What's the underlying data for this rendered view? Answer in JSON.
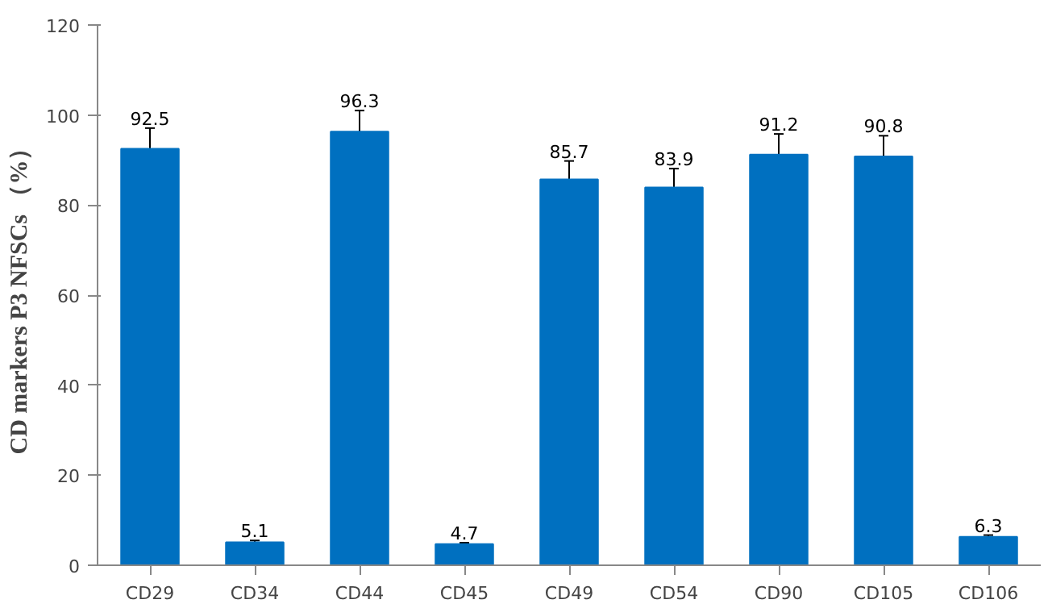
{
  "chart_data": {
    "type": "bar",
    "ylabel": "CD markers P3 NFSCs （%）",
    "categories": [
      "CD29",
      "CD34",
      "CD44",
      "CD45",
      "CD49",
      "CD54",
      "CD90",
      "CD105",
      "CD106"
    ],
    "values": [
      92.5,
      5.1,
      96.3,
      4.7,
      85.7,
      83.9,
      91.2,
      90.8,
      6.3
    ],
    "errors": [
      4.6,
      0.4,
      4.7,
      0.3,
      4.1,
      4.2,
      4.6,
      4.6,
      0.4
    ],
    "color": "#0070c0",
    "ylim": [
      0,
      120
    ],
    "yticks": [
      0,
      20,
      40,
      60,
      80,
      100,
      120
    ],
    "grid": false,
    "data_labels": true
  }
}
